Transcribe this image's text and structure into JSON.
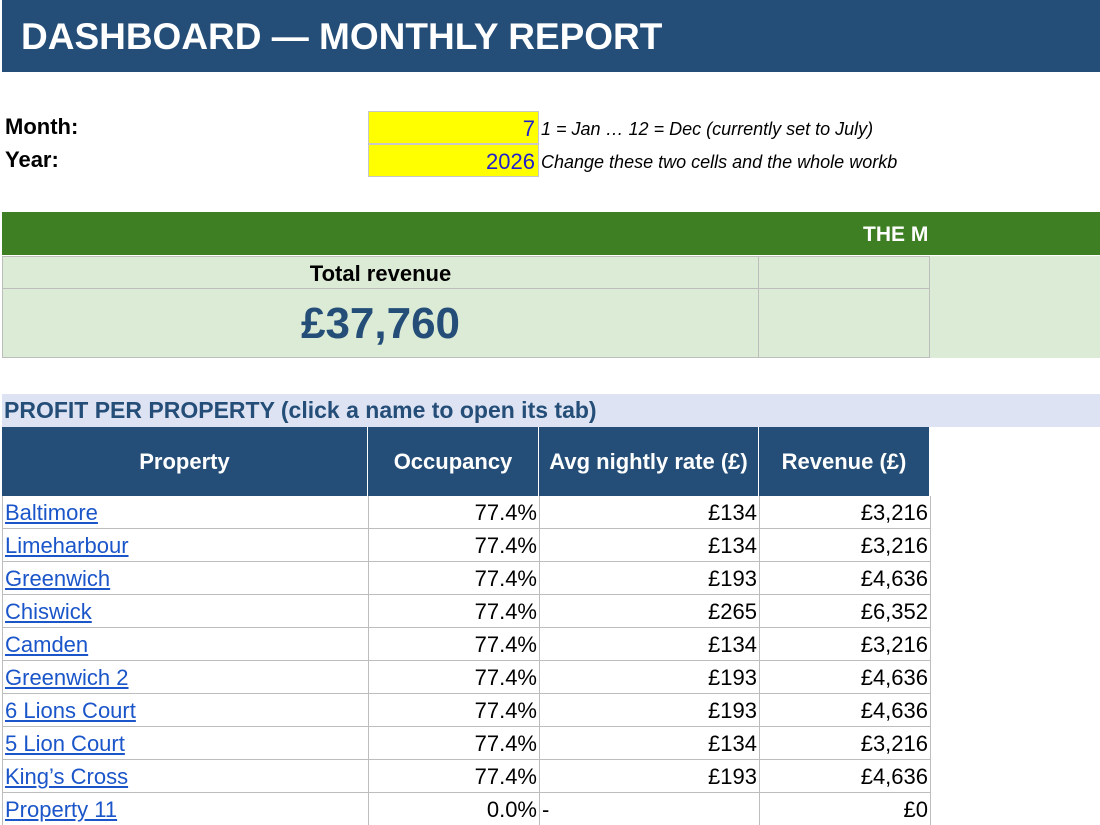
{
  "header": {
    "title": "DASHBOARD — MONTHLY REPORT"
  },
  "inputs": [
    {
      "label": "Month:",
      "value": 7,
      "note": "1 = Jan … 12 = Dec   (currently set to July)"
    },
    {
      "label": "Year:",
      "value": 2026,
      "note": "Change these two cells and the whole workb"
    }
  ],
  "summary": {
    "banner": "THE M",
    "kpi_label": "Total revenue",
    "kpi_value": "£37,760"
  },
  "table": {
    "title": "PROFIT PER PROPERTY  (click a name to open its tab)",
    "columns": [
      "Property",
      "Occupancy",
      "Avg nightly rate (£)",
      "Revenue (£)"
    ],
    "rows": [
      [
        "Baltimore",
        "77.4%",
        "£134",
        "£3,216"
      ],
      [
        "Limeharbour",
        "77.4%",
        "£134",
        "£3,216"
      ],
      [
        "Greenwich",
        "77.4%",
        "£193",
        "£4,636"
      ],
      [
        "Chiswick",
        "77.4%",
        "£265",
        "£6,352"
      ],
      [
        "Camden",
        "77.4%",
        "£134",
        "£3,216"
      ],
      [
        "Greenwich 2",
        "77.4%",
        "£193",
        "£4,636"
      ],
      [
        "6 Lions Court",
        "77.4%",
        "£193",
        "£4,636"
      ],
      [
        "5 Lion Court",
        "77.4%",
        "£134",
        "£3,216"
      ],
      [
        "King’s Cross",
        "77.4%",
        "£193",
        "£4,636"
      ],
      [
        "Property 11",
        "0.0%",
        "-",
        "£0"
      ]
    ]
  }
}
